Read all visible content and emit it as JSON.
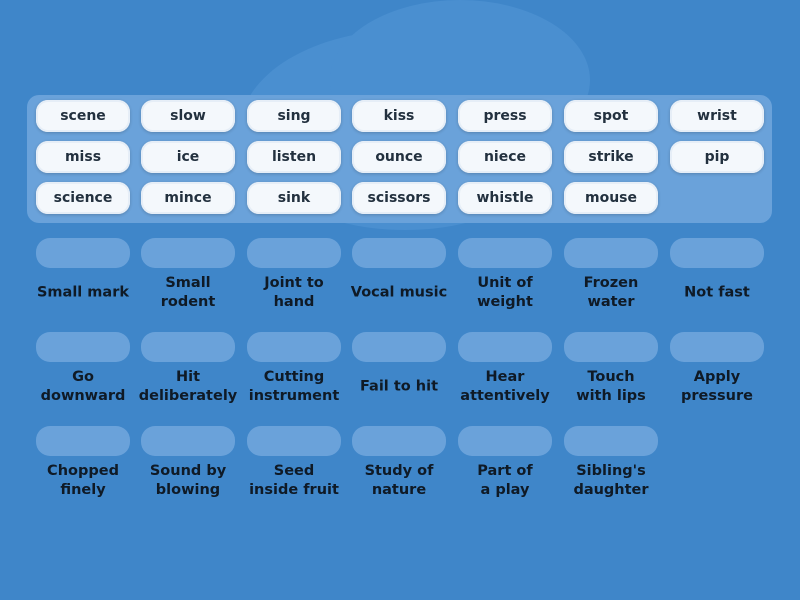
{
  "tiles": [
    [
      "scene",
      "slow",
      "sing",
      "kiss",
      "press",
      "spot",
      "wrist"
    ],
    [
      "miss",
      "ice",
      "listen",
      "ounce",
      "niece",
      "strike",
      "pip"
    ],
    [
      "science",
      "mince",
      "sink",
      "scissors",
      "whistle",
      "mouse"
    ]
  ],
  "clues": [
    [
      "Small mark",
      "Small\nrodent",
      "Joint to\nhand",
      "Vocal music",
      "Unit of\nweight",
      "Frozen\nwater",
      "Not fast"
    ],
    [
      "Go\ndownward",
      "Hit\ndeliberately",
      "Cutting\ninstrument",
      "Fail to hit",
      "Hear\nattentively",
      "Touch\nwith lips",
      "Apply\npressure"
    ],
    [
      "Chopped\nfinely",
      "Sound by\nblowing",
      "Seed\ninside fruit",
      "Study of\nnature",
      "Part of\na play",
      "Sibling's\ndaughter"
    ]
  ],
  "colors": {
    "background": "#3f86c9",
    "tile": "#f4f8fc",
    "slot": "#6aa2da",
    "text": "#0f1a26"
  }
}
